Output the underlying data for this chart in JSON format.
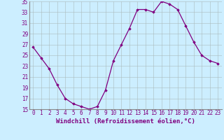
{
  "hours": [
    0,
    1,
    2,
    3,
    4,
    5,
    6,
    7,
    8,
    9,
    10,
    11,
    12,
    13,
    14,
    15,
    16,
    17,
    18,
    19,
    20,
    21,
    22,
    23
  ],
  "values": [
    26.5,
    24.5,
    22.5,
    19.5,
    17.0,
    16.0,
    15.5,
    15.0,
    15.5,
    18.5,
    24.0,
    27.0,
    30.0,
    33.5,
    33.5,
    33.0,
    35.0,
    34.5,
    33.5,
    30.5,
    27.5,
    25.0,
    24.0,
    23.5
  ],
  "xlabel": "Windchill (Refroidissement éolien,°C)",
  "ylim": [
    15,
    35
  ],
  "yticks": [
    15,
    17,
    19,
    21,
    23,
    25,
    27,
    29,
    31,
    33,
    35
  ],
  "xticks": [
    0,
    1,
    2,
    3,
    4,
    5,
    6,
    7,
    8,
    9,
    10,
    11,
    12,
    13,
    14,
    15,
    16,
    17,
    18,
    19,
    20,
    21,
    22,
    23
  ],
  "line_color": "#800080",
  "marker": "D",
  "marker_size": 1.8,
  "bg_color": "#cceeff",
  "grid_color": "#aabbbb",
  "xlabel_fontsize": 6.5,
  "tick_fontsize": 5.5,
  "line_width": 0.9
}
